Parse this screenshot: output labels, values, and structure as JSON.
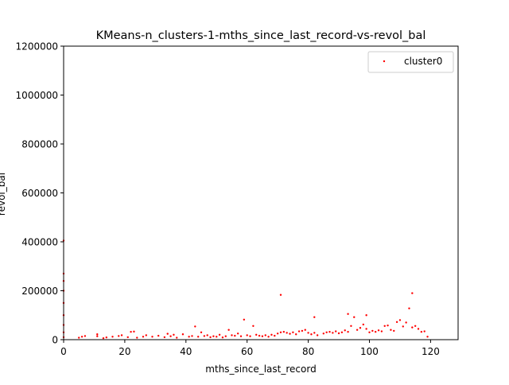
{
  "chart_data": {
    "type": "scatter",
    "title": "KMeans-n_clusters-1-mths_since_last_record-vs-revol_bal",
    "xlabel": "mths_since_last_record",
    "ylabel": "revol_bal",
    "xlim": [
      0,
      129
    ],
    "ylim": [
      0,
      1200000
    ],
    "xticks": [
      0,
      20,
      40,
      60,
      80,
      100,
      120
    ],
    "yticks": [
      0,
      200000,
      400000,
      600000,
      800000,
      1000000,
      1200000
    ],
    "xtick_labels": [
      "0",
      "20",
      "40",
      "60",
      "80",
      "100",
      "120"
    ],
    "ytick_labels": [
      "0",
      "200000",
      "400000",
      "600000",
      "800000",
      "1000000",
      "1200000"
    ],
    "grid": false,
    "legend": {
      "position": "top-right",
      "entries": [
        "cluster0"
      ]
    },
    "series": [
      {
        "name": "cluster0",
        "color": "#ff0000",
        "marker": "point",
        "points": [
          [
            0,
            405000
          ],
          [
            0,
            270000
          ],
          [
            0,
            240000
          ],
          [
            0,
            200000
          ],
          [
            0,
            150000
          ],
          [
            0,
            100000
          ],
          [
            0,
            60000
          ],
          [
            0,
            30000
          ],
          [
            0,
            10000
          ],
          [
            5,
            8000
          ],
          [
            6,
            12000
          ],
          [
            7,
            15000
          ],
          [
            11,
            22000
          ],
          [
            11,
            14000
          ],
          [
            13,
            6000
          ],
          [
            14,
            9000
          ],
          [
            16,
            12000
          ],
          [
            18,
            15000
          ],
          [
            19,
            18000
          ],
          [
            21,
            10000
          ],
          [
            22,
            32000
          ],
          [
            23,
            33000
          ],
          [
            24,
            8000
          ],
          [
            26,
            12000
          ],
          [
            27,
            18000
          ],
          [
            29,
            12000
          ],
          [
            31,
            16000
          ],
          [
            33,
            10000
          ],
          [
            34,
            24000
          ],
          [
            35,
            14000
          ],
          [
            36,
            20000
          ],
          [
            37,
            8000
          ],
          [
            39,
            22000
          ],
          [
            41,
            12000
          ],
          [
            42,
            15000
          ],
          [
            43,
            54000
          ],
          [
            44,
            12000
          ],
          [
            45,
            30000
          ],
          [
            46,
            15000
          ],
          [
            47,
            18000
          ],
          [
            48,
            10000
          ],
          [
            49,
            14000
          ],
          [
            50,
            12000
          ],
          [
            51,
            20000
          ],
          [
            52,
            9000
          ],
          [
            53,
            14000
          ],
          [
            54,
            40000
          ],
          [
            55,
            18000
          ],
          [
            56,
            16000
          ],
          [
            57,
            25000
          ],
          [
            58,
            14000
          ],
          [
            59,
            82000
          ],
          [
            60,
            18000
          ],
          [
            61,
            14000
          ],
          [
            62,
            56000
          ],
          [
            63,
            20000
          ],
          [
            64,
            16000
          ],
          [
            65,
            14000
          ],
          [
            66,
            18000
          ],
          [
            67,
            12000
          ],
          [
            68,
            20000
          ],
          [
            69,
            16000
          ],
          [
            70,
            25000
          ],
          [
            71,
            183000
          ],
          [
            71,
            30000
          ],
          [
            72,
            32000
          ],
          [
            73,
            28000
          ],
          [
            74,
            24000
          ],
          [
            75,
            30000
          ],
          [
            76,
            22000
          ],
          [
            77,
            34000
          ],
          [
            78,
            36000
          ],
          [
            79,
            40000
          ],
          [
            80,
            28000
          ],
          [
            81,
            22000
          ],
          [
            82,
            92000
          ],
          [
            82,
            28000
          ],
          [
            83,
            18000
          ],
          [
            85,
            25000
          ],
          [
            86,
            30000
          ],
          [
            87,
            32000
          ],
          [
            88,
            28000
          ],
          [
            89,
            34000
          ],
          [
            90,
            26000
          ],
          [
            91,
            30000
          ],
          [
            92,
            38000
          ],
          [
            93,
            105000
          ],
          [
            93,
            32000
          ],
          [
            94,
            56000
          ],
          [
            95,
            92000
          ],
          [
            96,
            40000
          ],
          [
            97,
            48000
          ],
          [
            98,
            62000
          ],
          [
            99,
            100000
          ],
          [
            99,
            44000
          ],
          [
            100,
            30000
          ],
          [
            101,
            36000
          ],
          [
            102,
            32000
          ],
          [
            103,
            38000
          ],
          [
            104,
            34000
          ],
          [
            105,
            56000
          ],
          [
            106,
            58000
          ],
          [
            107,
            40000
          ],
          [
            108,
            36000
          ],
          [
            109,
            72000
          ],
          [
            110,
            80000
          ],
          [
            111,
            54000
          ],
          [
            112,
            70000
          ],
          [
            113,
            128000
          ],
          [
            114,
            190000
          ],
          [
            114,
            50000
          ],
          [
            115,
            56000
          ],
          [
            116,
            44000
          ],
          [
            117,
            32000
          ],
          [
            118,
            34000
          ],
          [
            119,
            12000
          ]
        ]
      }
    ]
  }
}
